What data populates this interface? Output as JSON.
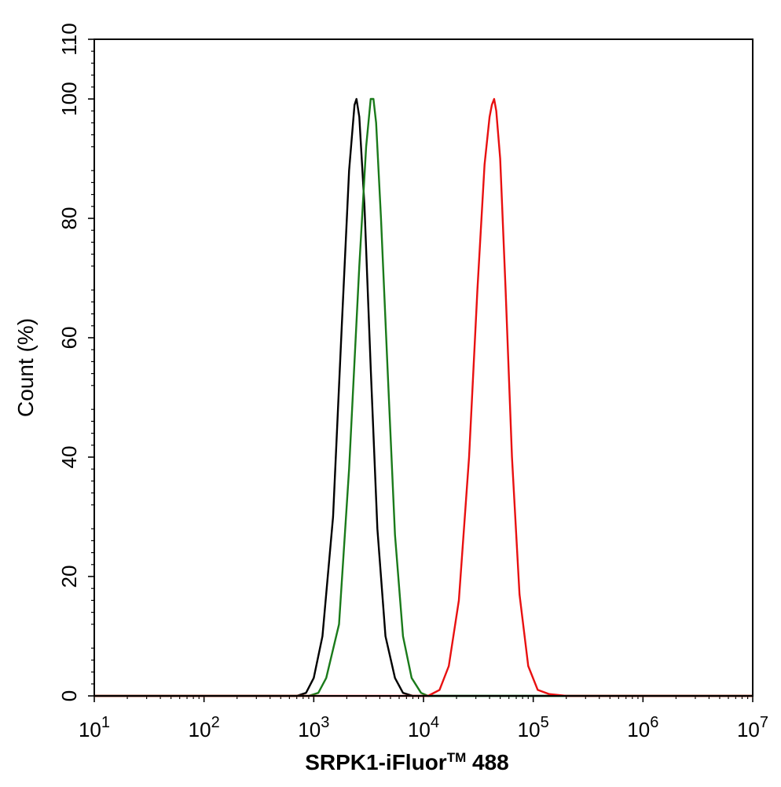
{
  "chart_data": {
    "type": "line",
    "title": "",
    "xlabel_main": "SRPK1-iFluor",
    "xlabel_tm": "TM",
    "xlabel_suffix": " 488",
    "ylabel": "Count  (%)",
    "x_scale": "log",
    "xlim": [
      10,
      10000000
    ],
    "ylim": [
      0,
      110
    ],
    "x_ticks": [
      {
        "base": "10",
        "exp": "1",
        "value": 10
      },
      {
        "base": "10",
        "exp": "2",
        "value": 100
      },
      {
        "base": "10",
        "exp": "3",
        "value": 1000
      },
      {
        "base": "10",
        "exp": "4",
        "value": 10000
      },
      {
        "base": "10",
        "exp": "5",
        "value": 100000
      },
      {
        "base": "10",
        "exp": "6",
        "value": 1000000
      },
      {
        "base": "10",
        "exp": "7",
        "value": 10000000
      }
    ],
    "y_ticks": [
      "0",
      "20",
      "40",
      "60",
      "80",
      "100",
      "110"
    ],
    "y_tick_values": [
      0,
      20,
      40,
      60,
      80,
      100,
      110
    ],
    "grid": false,
    "legend": "none",
    "series": [
      {
        "color": "#000000",
        "x": [
          700,
          850,
          1000,
          1200,
          1500,
          1800,
          2100,
          2350,
          2450,
          2600,
          2900,
          3300,
          3800,
          4500,
          5500,
          6500,
          8000
        ],
        "y": [
          0,
          0.5,
          3,
          10,
          30,
          62,
          88,
          99,
          100,
          97,
          82,
          55,
          28,
          10,
          3,
          0.5,
          0
        ]
      },
      {
        "color": "#1a7a1a",
        "x": [
          900,
          1100,
          1300,
          1700,
          2100,
          2600,
          3000,
          3300,
          3500,
          3700,
          4100,
          4700,
          5500,
          6500,
          7800,
          9500,
          11000
        ],
        "y": [
          0,
          0.5,
          3,
          12,
          38,
          72,
          92,
          100,
          100,
          96,
          80,
          55,
          27,
          10,
          3,
          0.5,
          0
        ]
      },
      {
        "color": "#e81010",
        "x": [
          11000,
          14000,
          17000,
          21000,
          26000,
          31000,
          36000,
          40000,
          42000,
          44000,
          46000,
          50000,
          56000,
          64000,
          75000,
          90000,
          110000,
          140000,
          200000
        ],
        "y": [
          0,
          1,
          5,
          16,
          40,
          68,
          89,
          97,
          99,
          100,
          98,
          90,
          68,
          40,
          17,
          5,
          1,
          0.3,
          0
        ]
      }
    ]
  }
}
